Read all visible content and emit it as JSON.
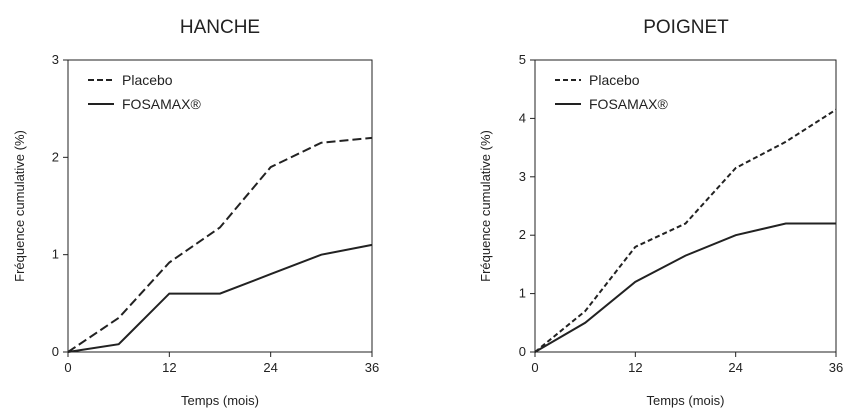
{
  "chart_data": [
    {
      "type": "line",
      "title": "HANCHE",
      "xlabel": "Temps (mois)",
      "ylabel": "Fréquence cumulative (%)",
      "xlim": [
        0,
        36
      ],
      "ylim": [
        0,
        3
      ],
      "xticks": [
        "0",
        "12",
        "24",
        "36"
      ],
      "yticks": [
        "0",
        "1",
        "2",
        "3"
      ],
      "legend_position": "top-left",
      "series": [
        {
          "name": "Placebo",
          "style": "dashed",
          "x": [
            0,
            6,
            12,
            18,
            24,
            30,
            36
          ],
          "y": [
            0,
            0.35,
            0.92,
            1.28,
            1.9,
            2.15,
            2.2
          ]
        },
        {
          "name": "FOSAMAX®",
          "style": "solid",
          "x": [
            0,
            6,
            12,
            18,
            24,
            30,
            36
          ],
          "y": [
            0,
            0.08,
            0.6,
            0.6,
            0.8,
            1.0,
            1.1
          ]
        }
      ]
    },
    {
      "type": "line",
      "title": "POIGNET",
      "xlabel": "Temps (mois)",
      "ylabel": "Fréquence cumulative (%)",
      "xlim": [
        0,
        36
      ],
      "ylim": [
        0,
        5
      ],
      "xticks": [
        "0",
        "12",
        "24",
        "36"
      ],
      "yticks": [
        "0",
        "1",
        "2",
        "3",
        "4",
        "5"
      ],
      "legend_position": "top-left",
      "series": [
        {
          "name": "Placebo",
          "style": "dotted",
          "x": [
            0,
            6,
            12,
            18,
            24,
            30,
            36
          ],
          "y": [
            0,
            0.7,
            1.8,
            2.2,
            3.15,
            3.6,
            4.15
          ]
        },
        {
          "name": "FOSAMAX®",
          "style": "solid",
          "x": [
            0,
            6,
            12,
            18,
            24,
            30,
            36
          ],
          "y": [
            0,
            0.5,
            1.2,
            1.65,
            2.0,
            2.2,
            2.2
          ]
        }
      ]
    }
  ]
}
